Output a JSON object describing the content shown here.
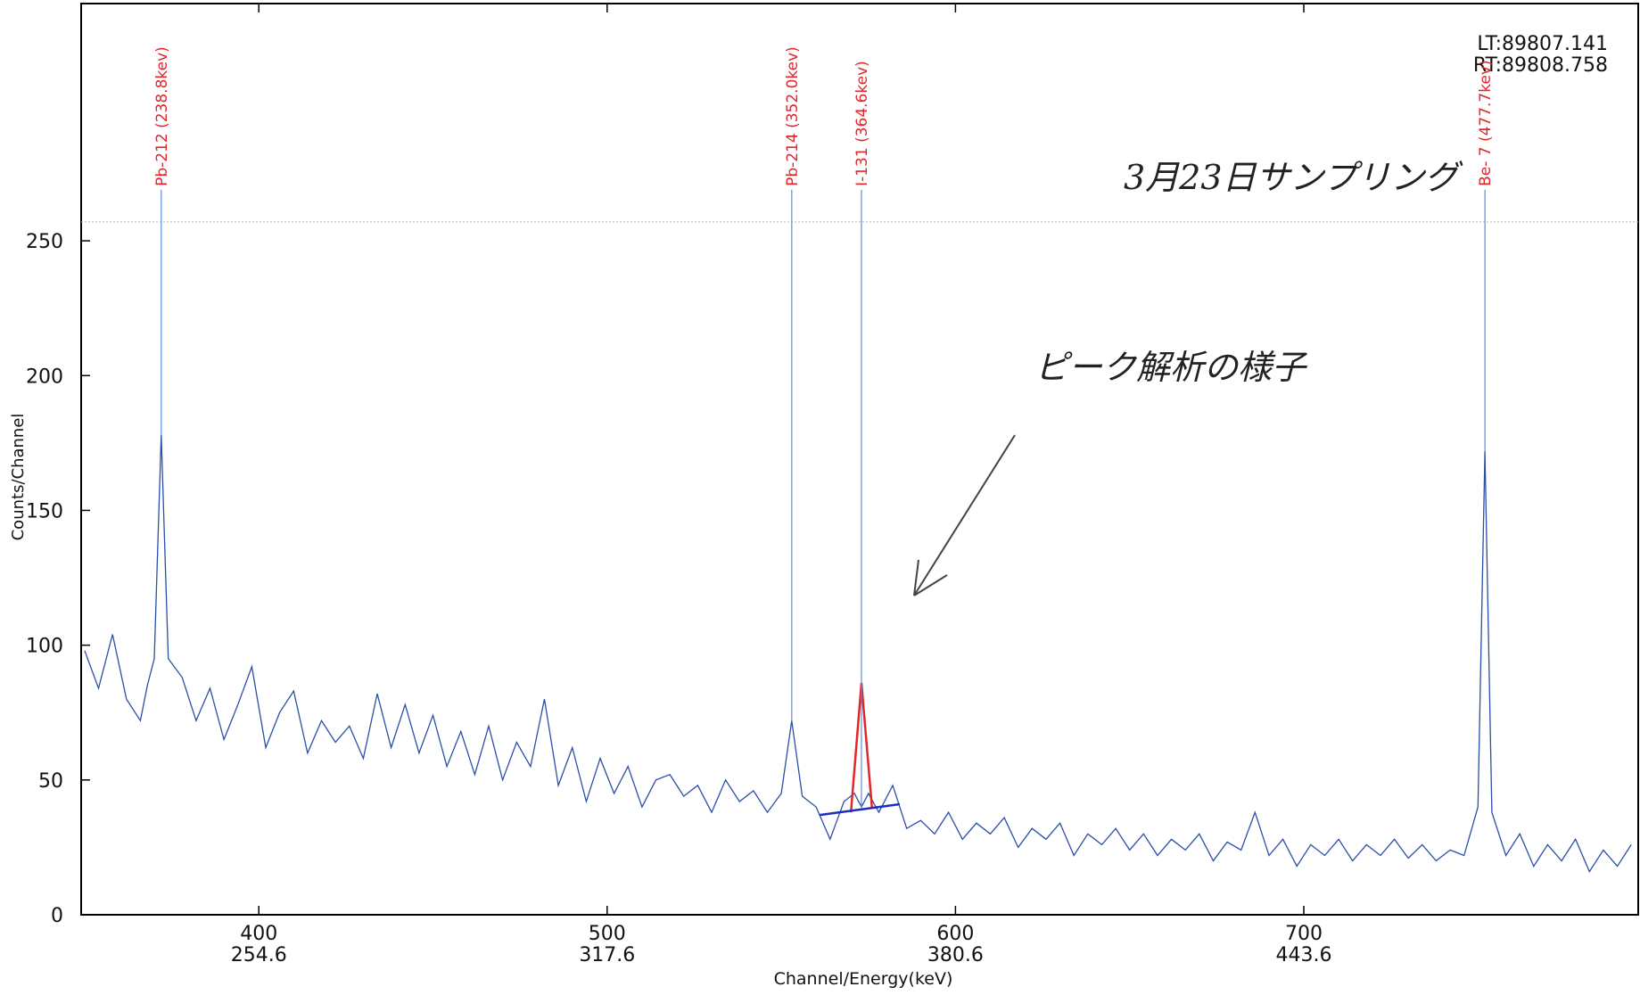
{
  "chart_data": {
    "type": "line",
    "y_label": "Counts/Channel",
    "x_label": "Channel/Energy(keV)",
    "live_time": "LT:89807.141",
    "real_time": "RT:89808.758",
    "handwritten_notes": [
      "3月23日サンプリング",
      "ピーク解析の様子"
    ],
    "xlim": [
      349,
      796
    ],
    "ylim": [
      0,
      338
    ],
    "xticks": [
      400,
      500,
      600,
      700
    ],
    "xtick_energies": [
      "254.6",
      "317.6",
      "380.6",
      "443.6"
    ],
    "yticks": [
      0,
      50,
      100,
      150,
      200,
      250
    ],
    "reference_line": 257,
    "annotations": [
      {
        "label": "Pb-212 (238.8kev)",
        "x": 372
      },
      {
        "label": "Pb-214 (352.0kev)",
        "x": 553
      },
      {
        "label": "I-131 (364.6kev)",
        "x": 573
      },
      {
        "label": "Be- 7 (477.7kev)",
        "x": 752
      }
    ],
    "series": [
      {
        "color": "#2a4fa8",
        "x": [
          350,
          354,
          358,
          362,
          366,
          368,
          370,
          372,
          374,
          378,
          382,
          386,
          390,
          394,
          398,
          402,
          406,
          410,
          414,
          418,
          422,
          426,
          430,
          434,
          438,
          442,
          446,
          450,
          454,
          458,
          462,
          466,
          470,
          474,
          478,
          482,
          486,
          490,
          494,
          498,
          502,
          506,
          510,
          514,
          518,
          522,
          526,
          530,
          534,
          538,
          542,
          546,
          550,
          553,
          556,
          560,
          564,
          568,
          571,
          573,
          575,
          578,
          582,
          586,
          590,
          594,
          598,
          602,
          606,
          610,
          614,
          618,
          622,
          626,
          630,
          634,
          638,
          642,
          646,
          650,
          654,
          658,
          662,
          666,
          670,
          674,
          678,
          682,
          686,
          690,
          694,
          698,
          702,
          706,
          710,
          714,
          718,
          722,
          726,
          730,
          734,
          738,
          742,
          746,
          750,
          752,
          754,
          758,
          762,
          766,
          770,
          774,
          778,
          782,
          786,
          790,
          794
        ],
        "values": [
          98,
          84,
          104,
          80,
          72,
          85,
          95,
          178,
          95,
          88,
          72,
          84,
          65,
          78,
          92,
          62,
          75,
          83,
          60,
          72,
          64,
          70,
          58,
          82,
          62,
          78,
          60,
          74,
          55,
          68,
          52,
          70,
          50,
          64,
          55,
          80,
          48,
          62,
          42,
          58,
          45,
          55,
          40,
          50,
          52,
          44,
          48,
          38,
          50,
          42,
          46,
          38,
          45,
          72,
          44,
          40,
          28,
          42,
          45,
          40,
          45,
          38,
          48,
          32,
          35,
          30,
          38,
          28,
          34,
          30,
          36,
          25,
          32,
          28,
          34,
          22,
          30,
          26,
          32,
          24,
          30,
          22,
          28,
          24,
          30,
          20,
          27,
          24,
          38,
          22,
          28,
          18,
          26,
          22,
          28,
          20,
          26,
          22,
          28,
          21,
          26,
          20,
          24,
          22,
          40,
          172,
          38,
          22,
          30,
          18,
          26,
          20,
          28,
          16,
          24,
          18,
          26
        ]
      },
      {
        "color": "#e0262a",
        "x": [
          570,
          573,
          576
        ],
        "values": [
          38,
          86,
          40
        ]
      },
      {
        "color": "#1b2fbf",
        "x": [
          561,
          584
        ],
        "values": [
          37,
          41
        ]
      }
    ]
  }
}
